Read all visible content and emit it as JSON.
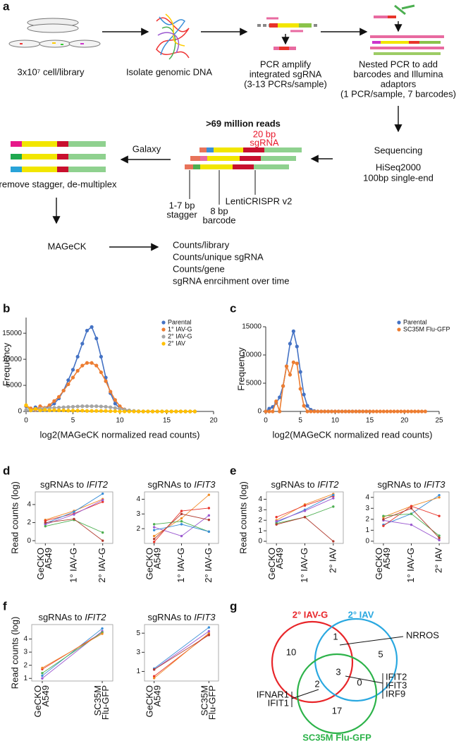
{
  "panel_labels": [
    "a",
    "b",
    "c",
    "d",
    "e",
    "f",
    "g"
  ],
  "workflow": {
    "step1": "3x10⁷ cell/library",
    "step2": "Isolate genomic DNA",
    "step3": [
      "PCR amplify",
      "integrated sgRNA",
      "(3-13 PCRs/sample)"
    ],
    "step4": [
      "Nested PCR to add",
      "barcodes and Illumina",
      "adaptors",
      "(1 PCR/sample, 7 barcodes)"
    ],
    "sequencing": "Sequencing",
    "seq_details": [
      "HiSeq2000",
      "100bp single-end"
    ],
    "reads": ">69 million reads",
    "sgrna_label": [
      "20 bp",
      "sgRNA"
    ],
    "stagger": [
      "1-7 bp",
      "stagger"
    ],
    "barcode": [
      "8 bp",
      "barcode"
    ],
    "vector": "LentiCRISPR v2",
    "galaxy": "Galaxy",
    "demux": "remove stagger, de-multiplex",
    "mageck": "MAGeCK",
    "outputs": [
      "Counts/library",
      "Counts/unique sgRNA",
      "Counts/gene",
      "sgRNA enrcihment over time"
    ]
  },
  "chart_data": [
    {
      "type": "line",
      "xlabel": "log2(MAGeCK normalized read counts)",
      "ylabel": "Frequency",
      "x": [
        0,
        0.5,
        1,
        1.5,
        2,
        2.5,
        3,
        3.5,
        4,
        4.5,
        5,
        5.5,
        6,
        6.5,
        7,
        7.5,
        8,
        8.5,
        9,
        9.5,
        10,
        10.5,
        11,
        11.5,
        12,
        12.5,
        13,
        13.5,
        14,
        14.5,
        15,
        15.5,
        16,
        16.5,
        17,
        17.5,
        18
      ],
      "xlim": [
        0,
        20
      ],
      "xticks": [
        0,
        5,
        10,
        15,
        20
      ],
      "ylim": [
        0,
        18000
      ],
      "yticks": [
        0,
        5000,
        10000,
        15000
      ],
      "legend": "upper right",
      "markers": true,
      "series": [
        {
          "name": "Parental",
          "color": "#4472c4",
          "values": [
            1000,
            200,
            800,
            300,
            600,
            900,
            1500,
            2500,
            4000,
            6000,
            8000,
            10500,
            13000,
            15500,
            16200,
            14000,
            10500,
            6500,
            3500,
            1500,
            600,
            200,
            80,
            30,
            0,
            0,
            0,
            0,
            0,
            0,
            0,
            0,
            0,
            0,
            0,
            0,
            0
          ]
        },
        {
          "name": "1° IAV-G",
          "color": "#ed7d31",
          "values": [
            1100,
            600,
            300,
            1000,
            700,
            1200,
            2000,
            2800,
            4000,
            5200,
            6500,
            7800,
            8800,
            9300,
            9300,
            8800,
            7500,
            5800,
            3800,
            2200,
            1000,
            400,
            150,
            50,
            0,
            0,
            0,
            0,
            0,
            0,
            0,
            0,
            0,
            0,
            0,
            0,
            0
          ]
        },
        {
          "name": "2° IAV-G",
          "color": "#a5a5a5",
          "values": [
            300,
            200,
            400,
            500,
            600,
            650,
            700,
            750,
            800,
            850,
            900,
            950,
            1000,
            1000,
            1000,
            1000,
            950,
            900,
            800,
            650,
            500,
            350,
            200,
            100,
            50,
            0,
            0,
            0,
            0,
            0,
            0,
            0,
            0,
            0,
            0,
            0,
            0
          ]
        },
        {
          "name": "2° IAV",
          "color": "#ffc000",
          "values": [
            1200,
            200,
            500,
            200,
            300,
            200,
            250,
            200,
            200,
            150,
            150,
            150,
            150,
            100,
            100,
            100,
            100,
            100,
            50,
            50,
            0,
            0,
            0,
            0,
            0,
            0,
            0,
            0,
            0,
            0,
            0,
            0,
            0,
            0,
            0,
            0,
            0
          ]
        }
      ]
    },
    {
      "type": "line",
      "xlabel": "log2(MAGeCK normalized read counts)",
      "ylabel": "Frequency",
      "x": [
        0,
        0.5,
        1,
        1.5,
        2,
        2.5,
        3,
        3.5,
        4,
        4.5,
        5,
        5.5,
        6,
        6.5,
        7,
        7.5,
        8,
        8.5,
        9,
        9.5,
        10,
        10.5,
        11,
        11.5,
        12,
        12.5,
        13,
        13.5,
        14,
        14.5,
        15,
        15.5,
        16,
        16.5,
        17,
        17.5,
        18,
        18.5,
        19,
        19.5,
        20,
        20.5,
        21,
        21.5,
        22,
        22.5,
        23
      ],
      "xlim": [
        0,
        25
      ],
      "xticks": [
        0,
        5,
        10,
        15,
        20,
        25
      ],
      "ylim": [
        0,
        15000
      ],
      "yticks": [
        0,
        5000,
        10000,
        15000
      ],
      "legend": "upper right",
      "markers": true,
      "series": [
        {
          "name": "Parental",
          "color": "#4472c4",
          "values": [
            0,
            500,
            800,
            1500,
            2500,
            4500,
            8000,
            12000,
            14200,
            11500,
            7000,
            3000,
            1000,
            300,
            80,
            0,
            0,
            0,
            0,
            0,
            0,
            0,
            0,
            0,
            0,
            0,
            0,
            0,
            0,
            0,
            0,
            null,
            null,
            null,
            null,
            null,
            null,
            null,
            null,
            null,
            null,
            null,
            null,
            null,
            null,
            null,
            null
          ]
        },
        {
          "name": "SC35M Flu-GFP",
          "color": "#ed7d31",
          "values": [
            0,
            0,
            0,
            1800,
            0,
            4500,
            8000,
            6500,
            8700,
            8500,
            4000,
            1000,
            0,
            0,
            0,
            0,
            0,
            0,
            0,
            0,
            0,
            0,
            0,
            0,
            0,
            0,
            0,
            0,
            0,
            0,
            0,
            0,
            0,
            0,
            0,
            0,
            0,
            0,
            0,
            0,
            0,
            0,
            0,
            0,
            0,
            0,
            0
          ]
        }
      ]
    },
    {
      "type": "line",
      "title": "sgRNAs to ",
      "title_gene": "IFIT2",
      "ylabel": "Read counts (log)",
      "frame": true,
      "categories": [
        [
          "GeCKO",
          "A549"
        ],
        [
          "1° IAV-G"
        ],
        [
          "2° IAV-G"
        ]
      ],
      "ylim": [
        -0.3,
        5.4
      ],
      "yticks": [
        0,
        2,
        4
      ],
      "markers": true,
      "series": [
        {
          "color": "#f08a24",
          "values": [
            2.3,
            3.3,
            4.6
          ]
        },
        {
          "color": "#e8342a",
          "values": [
            2.2,
            3.0,
            4.3
          ]
        },
        {
          "color": "#3a8fd8",
          "values": [
            1.9,
            3.2,
            5.2
          ]
        },
        {
          "color": "#9b59d0",
          "values": [
            1.8,
            2.9,
            4.5
          ]
        },
        {
          "color": "#4caf50",
          "values": [
            1.6,
            2.3,
            0.9
          ]
        },
        {
          "color": "#b03a2e",
          "values": [
            2.0,
            2.4,
            0.0
          ]
        }
      ]
    },
    {
      "type": "line",
      "title": "sgRNAs to ",
      "title_gene": "IFIT3",
      "frame": true,
      "categories": [
        [
          "GeCKO",
          "A549"
        ],
        [
          "1° IAV-G"
        ],
        [
          "2° IAV-G"
        ]
      ],
      "ylim": [
        1,
        4.5
      ],
      "yticks": [
        2,
        3,
        4
      ],
      "markers": true,
      "series": [
        {
          "color": "#f08a24",
          "values": [
            1.5,
            2.7,
            4.3
          ]
        },
        {
          "color": "#e8342a",
          "values": [
            1.1,
            3.2,
            3.4
          ]
        },
        {
          "color": "#9b59d0",
          "values": [
            2.1,
            1.5,
            2.9
          ]
        },
        {
          "color": "#4caf50",
          "values": [
            2.3,
            2.5,
            1.8
          ]
        },
        {
          "color": "#3a8fd8",
          "values": [
            1.9,
            2.3,
            1.8
          ]
        },
        {
          "color": "#b03a2e",
          "values": [
            1.3,
            3.0,
            2.6
          ]
        }
      ]
    },
    {
      "type": "line",
      "title": "sgRNAs to ",
      "title_gene": "IFIT2",
      "ylabel": "Read counts (log)",
      "frame": true,
      "categories": [
        [
          "GeCKO",
          "A549"
        ],
        [
          "1° IAV-G"
        ],
        [
          "2° IAV"
        ]
      ],
      "ylim": [
        -0.2,
        4.7
      ],
      "yticks": [
        0,
        1,
        2,
        3,
        4
      ],
      "markers": true,
      "series": [
        {
          "color": "#f08a24",
          "values": [
            2.0,
            3.5,
            4.5
          ]
        },
        {
          "color": "#e8342a",
          "values": [
            2.3,
            3.4,
            4.3
          ]
        },
        {
          "color": "#3a8fd8",
          "values": [
            1.8,
            3.0,
            4.4
          ]
        },
        {
          "color": "#9b59d0",
          "values": [
            1.9,
            2.9,
            4.1
          ]
        },
        {
          "color": "#4caf50",
          "values": [
            1.7,
            2.3,
            3.3
          ]
        },
        {
          "color": "#b03a2e",
          "values": [
            1.6,
            2.3,
            0.0
          ]
        }
      ]
    },
    {
      "type": "line",
      "title": "sgRNAs to ",
      "title_gene": "IFIT3",
      "frame": true,
      "categories": [
        [
          "GeCKO",
          "A549"
        ],
        [
          "1° IAV-G"
        ],
        [
          "2° IAV"
        ]
      ],
      "ylim": [
        -0.2,
        4.5
      ],
      "yticks": [
        0,
        1,
        2,
        3,
        4
      ],
      "markers": true,
      "series": [
        {
          "color": "#3a8fd8",
          "values": [
            1.5,
            2.5,
            4.2
          ]
        },
        {
          "color": "#f08a24",
          "values": [
            2.2,
            3.2,
            4.0
          ]
        },
        {
          "color": "#e8342a",
          "values": [
            1.4,
            3.2,
            2.3
          ]
        },
        {
          "color": "#9b59d0",
          "values": [
            1.9,
            1.5,
            0.1
          ]
        },
        {
          "color": "#4caf50",
          "values": [
            2.3,
            2.5,
            0.5
          ]
        },
        {
          "color": "#b03a2e",
          "values": [
            2.0,
            3.0,
            0.3
          ]
        }
      ]
    },
    {
      "type": "line",
      "title": "sgRNAs to ",
      "title_gene": "IFIT2",
      "ylabel": "Read counts (log)",
      "frame": true,
      "categories": [
        [
          "GeCKO",
          "A549"
        ],
        [
          "SC35M",
          "Flu-GFP"
        ]
      ],
      "ylim": [
        0.8,
        5.1
      ],
      "yticks": [
        1,
        2,
        3,
        4
      ],
      "markers": true,
      "series": [
        {
          "color": "#3a8fd8",
          "values": [
            1.2,
            4.8
          ]
        },
        {
          "color": "#e8342a",
          "values": [
            1.7,
            4.5
          ]
        },
        {
          "color": "#9b59d0",
          "values": [
            1.0,
            4.6
          ]
        },
        {
          "color": "#4caf50",
          "values": [
            1.4,
            4.5
          ]
        },
        {
          "color": "#f08a24",
          "values": [
            1.8,
            4.4
          ]
        }
      ]
    },
    {
      "type": "line",
      "title": "sgRNAs to ",
      "title_gene": "IFIT3",
      "frame": true,
      "categories": [
        [
          "GeCKO",
          "A549"
        ],
        [
          "SC35M",
          "Flu-GFP"
        ]
      ],
      "ylim": [
        0,
        5.9
      ],
      "yticks": [
        1,
        3,
        5
      ],
      "markers": true,
      "series": [
        {
          "color": "#e8342a",
          "values": [
            0.5,
            4.9
          ]
        },
        {
          "color": "#f08a24",
          "values": [
            0.3,
            5.0
          ]
        },
        {
          "color": "#3a8fd8",
          "values": [
            1.3,
            5.6
          ]
        },
        {
          "color": "#9b59d0",
          "values": [
            1.2,
            5.2
          ]
        },
        {
          "color": "#b03a2e",
          "values": [
            1.2,
            4.8
          ]
        }
      ]
    }
  ],
  "venn": {
    "sets": [
      "2° IAV-G",
      "2° IAV",
      "SC35M Flu-GFP"
    ],
    "regions": [
      10,
      1,
      5,
      2,
      3,
      0,
      17
    ],
    "callouts": [
      [
        "NRROS"
      ],
      [
        "IFIT2",
        "IFIT3",
        "IRF9"
      ],
      [
        "IFNAR1",
        "IFIT1"
      ]
    ]
  }
}
